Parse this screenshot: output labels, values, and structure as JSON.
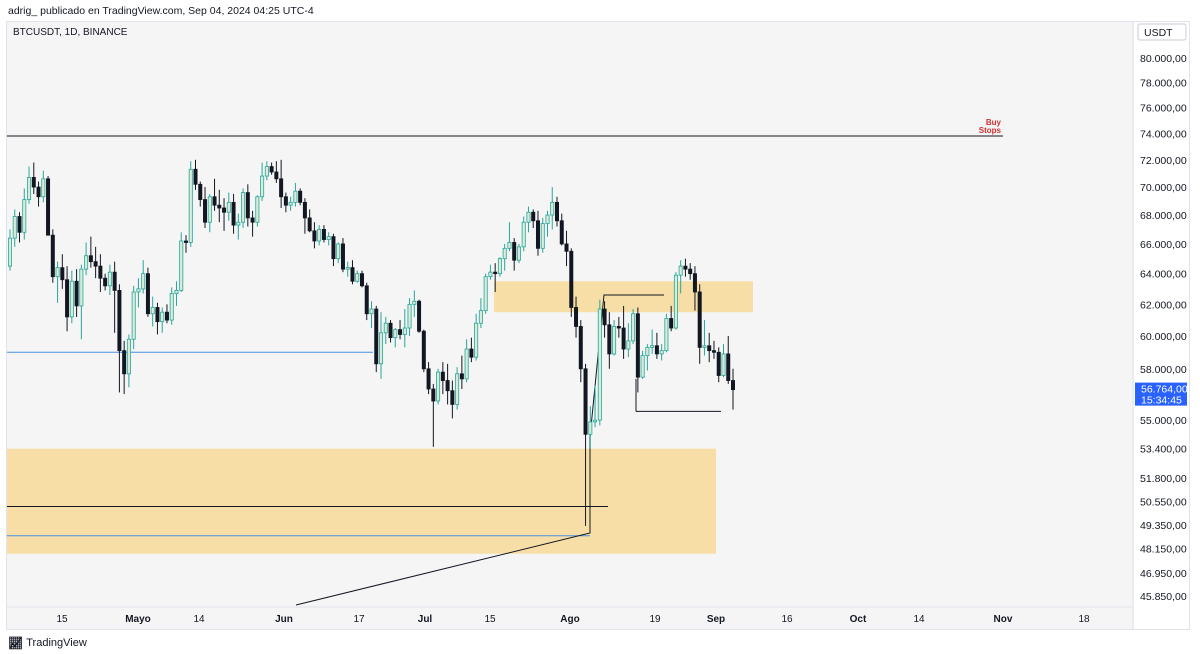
{
  "header": {
    "publisher_line": "adrig_ publicado en TradingView.com, Sep 04, 2024 04:25 UTC-4"
  },
  "footer": {
    "brand": "TradingView",
    "logo_icon": "tradingview-logo-icon"
  },
  "chart_data": {
    "type": "candlestick",
    "title": "BTCUSDT, 1D, BINANCE",
    "currency_label": "USDT",
    "y_tick_labels": [
      "80.000,00",
      "78.000,00",
      "76.000,00",
      "74.000,00",
      "72.000,00",
      "70.000,00",
      "68.000,00",
      "66.000,00",
      "64.000,00",
      "62.000,00",
      "60.000,00",
      "58.000,00",
      "55.000,00",
      "53.400,00",
      "51.800,00",
      "50.550,00",
      "49.350,00",
      "48.150,00",
      "46.950,00",
      "45.850,00"
    ],
    "x_tick_labels": [
      "15",
      "Mayo",
      "14",
      "Jun",
      "17",
      "Jul",
      "15",
      "Ago",
      "19",
      "Sep",
      "16",
      "Oct",
      "14",
      "Nov",
      "18"
    ],
    "last_price_label": "56.764,00",
    "countdown_label": "15:34:45",
    "colors": {
      "up": "#26a69a",
      "down": "#131722",
      "up_body": "#d9ecd9",
      "zone": "#f7dea6",
      "price_tag": "#2962ff",
      "horizontal_blue": "#4a90e2",
      "annotation": "#d32f2f"
    },
    "annotations": [
      {
        "text_line1": "Buy",
        "text_line2": "Stops",
        "price": 73800
      }
    ],
    "zones": [
      {
        "price_top": 63500,
        "price_bottom": 61500
      },
      {
        "price_top": 53400,
        "price_bottom": 47900
      }
    ],
    "levels": [
      {
        "price": 73800,
        "color": "#131722"
      },
      {
        "price": 59000,
        "color": "#4a90e2"
      },
      {
        "price": 50300,
        "color": "#131722"
      },
      {
        "price": 48800,
        "color": "#4a90e2"
      }
    ],
    "candles": [
      [
        64500,
        67000,
        64200,
        66400
      ],
      [
        66400,
        68400,
        65800,
        67900
      ],
      [
        67900,
        68200,
        66100,
        66800
      ],
      [
        66800,
        69900,
        66300,
        69100
      ],
      [
        69100,
        71500,
        68800,
        70700
      ],
      [
        70700,
        71800,
        69500,
        70000
      ],
      [
        70000,
        70400,
        68600,
        69300
      ],
      [
        69300,
        71200,
        68900,
        70600
      ],
      [
        70600,
        70800,
        66600,
        66600
      ],
      [
        66600,
        67000,
        63400,
        63800
      ],
      [
        63800,
        64800,
        62100,
        64400
      ],
      [
        64400,
        65300,
        63000,
        63600
      ],
      [
        63600,
        64500,
        60300,
        61200
      ],
      [
        61200,
        64200,
        60800,
        63500
      ],
      [
        63500,
        64300,
        61200,
        61900
      ],
      [
        61900,
        64600,
        59800,
        64300
      ],
      [
        64300,
        66100,
        63900,
        65200
      ],
      [
        65200,
        66500,
        64400,
        64800
      ],
      [
        64800,
        65800,
        63700,
        64500
      ],
      [
        64500,
        65300,
        62800,
        63700
      ],
      [
        63700,
        64000,
        62900,
        63200
      ],
      [
        63200,
        64600,
        62600,
        64100
      ],
      [
        64100,
        64800,
        60200,
        62900
      ],
      [
        62900,
        63300,
        56600,
        59100
      ],
      [
        59100,
        59700,
        56500,
        57700
      ],
      [
        57700,
        60100,
        56900,
        59800
      ],
      [
        59800,
        63200,
        59200,
        62800
      ],
      [
        62800,
        63700,
        61800,
        63000
      ],
      [
        63000,
        64900,
        62700,
        64000
      ],
      [
        64000,
        64400,
        61200,
        61400
      ],
      [
        61400,
        62500,
        60600,
        61800
      ],
      [
        61800,
        62100,
        60100,
        60900
      ],
      [
        60900,
        61800,
        60200,
        61500
      ],
      [
        61500,
        62000,
        60800,
        61000
      ],
      [
        61000,
        63100,
        60700,
        62700
      ],
      [
        62700,
        63500,
        61900,
        62900
      ],
      [
        62900,
        66800,
        62800,
        66200
      ],
      [
        66200,
        66600,
        65400,
        66100
      ],
      [
        66100,
        71900,
        65800,
        71300
      ],
      [
        71300,
        72000,
        69800,
        70200
      ],
      [
        70200,
        70400,
        68600,
        69100
      ],
      [
        69100,
        70000,
        67100,
        67500
      ],
      [
        67500,
        69500,
        66800,
        69300
      ],
      [
        69300,
        70600,
        68300,
        68700
      ],
      [
        68700,
        69800,
        67500,
        68500
      ],
      [
        68500,
        69200,
        66900,
        68200
      ],
      [
        68200,
        69600,
        67600,
        68900
      ],
      [
        68900,
        69500,
        66700,
        67300
      ],
      [
        67300,
        68100,
        66300,
        67500
      ],
      [
        67500,
        69900,
        67100,
        69600
      ],
      [
        69600,
        70200,
        67200,
        67800
      ],
      [
        67800,
        68300,
        66500,
        67500
      ],
      [
        67500,
        69400,
        67200,
        69300
      ],
      [
        69300,
        71800,
        69000,
        70800
      ],
      [
        70800,
        71900,
        70500,
        71500
      ],
      [
        71500,
        71800,
        70900,
        71100
      ],
      [
        71100,
        71900,
        70300,
        70600
      ],
      [
        70600,
        72000,
        68500,
        69300
      ],
      [
        69300,
        69600,
        68200,
        68700
      ],
      [
        68700,
        69300,
        68300,
        68900
      ],
      [
        68900,
        70300,
        68600,
        69700
      ],
      [
        69700,
        69900,
        68700,
        68900
      ],
      [
        68900,
        69200,
        66700,
        67800
      ],
      [
        67800,
        68400,
        66800,
        66900
      ],
      [
        66900,
        67500,
        65700,
        66200
      ],
      [
        66200,
        67300,
        65900,
        67000
      ],
      [
        67000,
        67300,
        66100,
        66300
      ],
      [
        66300,
        66800,
        65900,
        66500
      ],
      [
        66500,
        66700,
        64500,
        65000
      ],
      [
        65000,
        66100,
        64700,
        66000
      ],
      [
        66000,
        66400,
        64100,
        64300
      ],
      [
        64300,
        64800,
        63800,
        64400
      ],
      [
        64400,
        64900,
        63300,
        63500
      ],
      [
        63500,
        64200,
        63400,
        64000
      ],
      [
        64000,
        64200,
        63100,
        63200
      ],
      [
        63200,
        63400,
        61000,
        61400
      ],
      [
        61400,
        62200,
        60500,
        61700
      ],
      [
        61700,
        61900,
        57800,
        58300
      ],
      [
        58300,
        61500,
        57400,
        60200
      ],
      [
        60200,
        61200,
        59500,
        60800
      ],
      [
        60800,
        61000,
        59600,
        59900
      ],
      [
        59900,
        60500,
        59300,
        60400
      ],
      [
        60400,
        61000,
        59800,
        60100
      ],
      [
        60100,
        61700,
        59300,
        60500
      ],
      [
        60500,
        62400,
        60000,
        62000
      ],
      [
        62000,
        62900,
        61200,
        62200
      ],
      [
        62200,
        62300,
        60200,
        60300
      ],
      [
        60300,
        60400,
        57800,
        58000
      ],
      [
        58000,
        58400,
        56500,
        56800
      ],
      [
        56800,
        57100,
        53500,
        56100
      ],
      [
        56100,
        58000,
        55900,
        57800
      ],
      [
        57800,
        58400,
        56500,
        57300
      ],
      [
        57300,
        58300,
        55900,
        56700
      ],
      [
        56700,
        57300,
        55100,
        55900
      ],
      [
        55900,
        58100,
        55600,
        57700
      ],
      [
        57700,
        58800,
        56800,
        57400
      ],
      [
        57400,
        59800,
        57200,
        59200
      ],
      [
        59200,
        59900,
        58400,
        58700
      ],
      [
        58700,
        61400,
        58500,
        60800
      ],
      [
        60800,
        62400,
        60500,
        61600
      ],
      [
        61600,
        64000,
        61400,
        63800
      ],
      [
        63800,
        64600,
        63600,
        64100
      ],
      [
        64100,
        64700,
        62800,
        64000
      ],
      [
        64000,
        65100,
        63800,
        65000
      ],
      [
        65000,
        66000,
        64200,
        65700
      ],
      [
        65700,
        67500,
        65500,
        66100
      ],
      [
        66100,
        66400,
        64200,
        64900
      ],
      [
        64900,
        66000,
        64700,
        65800
      ],
      [
        65800,
        67900,
        65500,
        67500
      ],
      [
        67500,
        68600,
        66800,
        68200
      ],
      [
        68200,
        68400,
        67100,
        67600
      ],
      [
        67600,
        68300,
        65200,
        65700
      ],
      [
        65700,
        67800,
        65400,
        67400
      ],
      [
        67400,
        68300,
        66500,
        68000
      ],
      [
        68000,
        70000,
        67000,
        68900
      ],
      [
        68900,
        69300,
        67200,
        67600
      ],
      [
        67600,
        68100,
        65900,
        66000
      ],
      [
        66000,
        66900,
        64500,
        65500
      ],
      [
        65500,
        65700,
        61200,
        61800
      ],
      [
        61800,
        62500,
        59900,
        60600
      ],
      [
        60600,
        61000,
        57200,
        58000
      ],
      [
        58000,
        58300,
        49300,
        54200
      ],
      [
        54200,
        55800,
        53400,
        54900
      ],
      [
        54900,
        57000,
        54600,
        55000
      ],
      [
        55000,
        62300,
        54700,
        61700
      ],
      [
        61700,
        62200,
        59900,
        60700
      ],
      [
        60700,
        61500,
        58000,
        58900
      ],
      [
        58900,
        61000,
        58800,
        60600
      ],
      [
        60600,
        61200,
        59900,
        60500
      ],
      [
        60500,
        61900,
        58600,
        59200
      ],
      [
        59200,
        60800,
        58700,
        59700
      ],
      [
        59700,
        61700,
        59500,
        61400
      ],
      [
        61400,
        61800,
        56600,
        57500
      ],
      [
        57500,
        59100,
        57400,
        58800
      ],
      [
        58800,
        59500,
        57900,
        59300
      ],
      [
        59300,
        60400,
        58900,
        59400
      ],
      [
        59400,
        60200,
        58600,
        58900
      ],
      [
        58900,
        59500,
        58500,
        59100
      ],
      [
        59100,
        61400,
        59000,
        61100
      ],
      [
        61100,
        61900,
        60300,
        60500
      ],
      [
        60500,
        64100,
        60400,
        63900
      ],
      [
        63900,
        64900,
        62700,
        64500
      ],
      [
        64500,
        65000,
        63800,
        64300
      ],
      [
        64300,
        64700,
        63600,
        64000
      ],
      [
        64000,
        64500,
        61600,
        62800
      ],
      [
        62800,
        63300,
        58300,
        59300
      ],
      [
        59300,
        61000,
        58800,
        59400
      ],
      [
        59400,
        60200,
        58400,
        59100
      ],
      [
        59100,
        59700,
        58600,
        59000
      ],
      [
        59000,
        59300,
        57200,
        57600
      ],
      [
        57600,
        59500,
        57500,
        58900
      ],
      [
        58900,
        60000,
        57100,
        57300
      ],
      [
        57300,
        58000,
        55600,
        56764
      ]
    ]
  }
}
